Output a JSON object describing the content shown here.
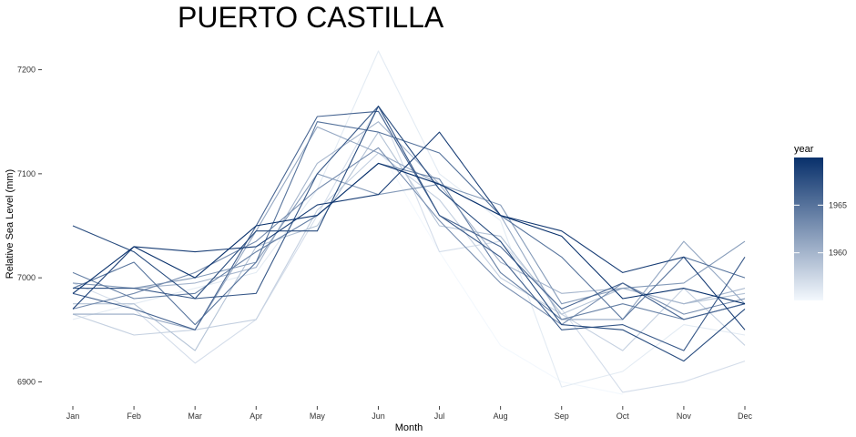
{
  "chart_data": {
    "type": "line",
    "title": "PUERTO CASTILLA",
    "xlabel": "Month",
    "ylabel": "Relative Sea Level (mm)",
    "categories": [
      "Jan",
      "Feb",
      "Mar",
      "Apr",
      "May",
      "Jun",
      "Jul",
      "Aug",
      "Sep",
      "Oct",
      "Nov",
      "Dec"
    ],
    "ylim": [
      6882,
      7232
    ],
    "yticks": [
      6900,
      7000,
      7100,
      7200
    ],
    "grid": false,
    "legend": {
      "title": "year",
      "position": "right",
      "min_year": 1955,
      "max_year": 1970,
      "tick_values": [
        1960,
        1965
      ],
      "tick_labels": [
        "1960",
        "1965"
      ],
      "color_low": "#f3f8fd",
      "color_high": "#08306b"
    },
    "series": [
      {
        "year": 1955,
        "values": [
          null,
          null,
          null,
          null,
          null,
          7125,
          7025,
          6935,
          6900,
          6888,
          null,
          null
        ]
      },
      {
        "year": 1956,
        "values": [
          6960,
          6975,
          6990,
          7005,
          7085,
          7218,
          7100,
          7055,
          6895,
          6910,
          6955,
          6945
        ]
      },
      {
        "year": 1957,
        "values": [
          6995,
          6970,
          6918,
          6960,
          7060,
          7165,
          7025,
          7035,
          6970,
          6890,
          6900,
          6920
        ]
      },
      {
        "year": 1958,
        "values": [
          6965,
          6945,
          6950,
          6960,
          7065,
          7120,
          7075,
          7000,
          6965,
          6930,
          6990,
          6935
        ]
      },
      {
        "year": 1959,
        "values": [
          6975,
          6975,
          6930,
          7030,
          7050,
          7140,
          7050,
          7040,
          6965,
          6990,
          6975,
          6985
        ]
      },
      {
        "year": 1960,
        "values": [
          6990,
          6990,
          6995,
          7010,
          7110,
          7150,
          7090,
          7015,
          6985,
          6990,
          6975,
          6990
        ]
      },
      {
        "year": 1961,
        "values": [
          6965,
          6965,
          6950,
          7045,
          7145,
          7120,
          7090,
          7060,
          6960,
          6960,
          7035,
          6975
        ]
      },
      {
        "year": 1962,
        "values": [
          6995,
          6990,
          7000,
          7015,
          7100,
          7080,
          7090,
          7070,
          6975,
          6990,
          6995,
          7035
        ]
      },
      {
        "year": 1963,
        "values": [
          6970,
          6985,
          7005,
          7035,
          7085,
          7125,
          7055,
          6995,
          6955,
          6995,
          6965,
          6980
        ]
      },
      {
        "year": 1964,
        "values": [
          7005,
          6980,
          6985,
          7025,
          7060,
          7110,
          7095,
          7005,
          6960,
          6975,
          6960,
          6975
        ]
      },
      {
        "year": 1965,
        "values": [
          6990,
          7015,
          6955,
          7015,
          7150,
          7140,
          7120,
          7060,
          7020,
          6960,
          7020,
          7000
        ]
      },
      {
        "year": 1966,
        "values": [
          6985,
          6970,
          6950,
          7050,
          7155,
          7160,
          7060,
          7030,
          6970,
          6995,
          6960,
          6975
        ]
      },
      {
        "year": 1967,
        "values": [
          6990,
          6990,
          6980,
          6985,
          7100,
          7165,
          7060,
          7020,
          6950,
          6955,
          6930,
          7020
        ]
      },
      {
        "year": 1968,
        "values": [
          7050,
          7025,
          6980,
          7045,
          7045,
          7165,
          7085,
          7035,
          6955,
          6950,
          6920,
          6970
        ]
      },
      {
        "year": 1969,
        "values": [
          6970,
          7030,
          7025,
          7030,
          7070,
          7080,
          7140,
          7060,
          7045,
          7005,
          7020,
          6950
        ]
      },
      {
        "year": 1970,
        "values": [
          6985,
          7030,
          7000,
          7050,
          7060,
          7110,
          7090,
          7060,
          7040,
          6980,
          6990,
          6975
        ]
      }
    ]
  }
}
